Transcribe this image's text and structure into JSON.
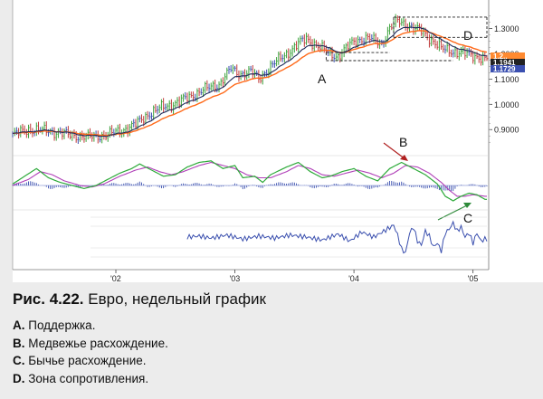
{
  "figure": {
    "number_label": "Рис. 4.22.",
    "caption": "Евро, недельный график"
  },
  "legend_items": [
    {
      "key": "A.",
      "text": "Поддержка."
    },
    {
      "key": "B.",
      "text": "Медвежье расхождение."
    },
    {
      "key": "C.",
      "text": "Бычье расхождение."
    },
    {
      "key": "D.",
      "text": "Зона сопротивления."
    }
  ],
  "colors": {
    "page_bg": "#ececec",
    "chart_bg": "#ffffff",
    "up_bar": "#3aa13a",
    "down_bar": "#c03a3a",
    "neutral_bar": "#3a4fae",
    "ema_fast": "#1f2a5a",
    "ema_slow": "#ff6a1a",
    "macd_line": "#2eaa3a",
    "signal_line": "#b040b8",
    "histogram": "#3a4fae",
    "index_line": "#3a4fae",
    "arrow_bearish": "#b02020",
    "arrow_bullish": "#2e8a3a",
    "price_tag_dark": "#222222",
    "price_tag_orange": "#ff8a30",
    "price_tag_blue": "#3a4fb0"
  },
  "chart_data": {
    "type": "line",
    "title": "Евро, недельный график",
    "x_ticks": [
      "'02",
      "'03",
      "'04",
      "'05"
    ],
    "y_ticks": [
      0.9,
      1.0,
      1.1,
      1.2,
      1.3
    ],
    "y_tick_labels": [
      "0.9000",
      "1.0000",
      "1.1000",
      "1.2000",
      "1.3000"
    ],
    "ylim": [
      0.84,
      1.37
    ],
    "price_tags": [
      "1.2..",
      "1.1941",
      "1.1729"
    ],
    "price_keypoints": [
      [
        0,
        0.88
      ],
      [
        8,
        0.9
      ],
      [
        18,
        0.895
      ],
      [
        28,
        0.88
      ],
      [
        38,
        0.87
      ],
      [
        48,
        0.88
      ],
      [
        56,
        0.9
      ],
      [
        62,
        0.92
      ],
      [
        68,
        0.96
      ],
      [
        76,
        0.99
      ],
      [
        84,
        1.01
      ],
      [
        94,
        1.05
      ],
      [
        104,
        1.08
      ],
      [
        110,
        1.14
      ],
      [
        114,
        1.12
      ],
      [
        120,
        1.13
      ],
      [
        124,
        1.1
      ],
      [
        130,
        1.15
      ],
      [
        138,
        1.2
      ],
      [
        144,
        1.24
      ],
      [
        148,
        1.26
      ],
      [
        150,
        1.25
      ],
      [
        156,
        1.22
      ],
      [
        160,
        1.2
      ],
      [
        164,
        1.19
      ],
      [
        168,
        1.22
      ],
      [
        172,
        1.25
      ],
      [
        176,
        1.26
      ],
      [
        180,
        1.26
      ],
      [
        186,
        1.24
      ],
      [
        190,
        1.3
      ],
      [
        194,
        1.33
      ],
      [
        198,
        1.32
      ],
      [
        202,
        1.3
      ],
      [
        206,
        1.29
      ],
      [
        212,
        1.25
      ],
      [
        216,
        1.22
      ],
      [
        222,
        1.21
      ],
      [
        228,
        1.2
      ],
      [
        234,
        1.19
      ],
      [
        238,
        1.18
      ]
    ],
    "macd_keypoints": [
      [
        0,
        0.05
      ],
      [
        6,
        0.3
      ],
      [
        12,
        0.55
      ],
      [
        18,
        0.25
      ],
      [
        24,
        0.1
      ],
      [
        30,
        0.0
      ],
      [
        36,
        -0.1
      ],
      [
        42,
        0.0
      ],
      [
        48,
        0.2
      ],
      [
        54,
        0.4
      ],
      [
        60,
        0.55
      ],
      [
        64,
        0.7
      ],
      [
        70,
        0.5
      ],
      [
        76,
        0.3
      ],
      [
        82,
        0.35
      ],
      [
        88,
        0.6
      ],
      [
        94,
        0.75
      ],
      [
        100,
        0.8
      ],
      [
        106,
        0.55
      ],
      [
        112,
        0.65
      ],
      [
        116,
        0.25
      ],
      [
        122,
        0.3
      ],
      [
        126,
        0.1
      ],
      [
        130,
        0.35
      ],
      [
        138,
        0.6
      ],
      [
        144,
        0.75
      ],
      [
        150,
        0.45
      ],
      [
        156,
        0.25
      ],
      [
        160,
        0.3
      ],
      [
        166,
        0.45
      ],
      [
        172,
        0.55
      ],
      [
        178,
        0.3
      ],
      [
        184,
        0.15
      ],
      [
        190,
        0.55
      ],
      [
        196,
        0.75
      ],
      [
        202,
        0.55
      ],
      [
        208,
        0.35
      ],
      [
        214,
        0.05
      ],
      [
        218,
        -0.35
      ],
      [
        222,
        -0.5
      ],
      [
        226,
        -0.35
      ],
      [
        230,
        -0.25
      ],
      [
        234,
        -0.3
      ],
      [
        238,
        -0.45
      ]
    ],
    "signal_keypoints": [
      [
        0,
        0.0
      ],
      [
        8,
        0.2
      ],
      [
        14,
        0.45
      ],
      [
        20,
        0.35
      ],
      [
        26,
        0.15
      ],
      [
        34,
        0.0
      ],
      [
        40,
        -0.05
      ],
      [
        46,
        0.05
      ],
      [
        54,
        0.3
      ],
      [
        62,
        0.5
      ],
      [
        68,
        0.6
      ],
      [
        74,
        0.45
      ],
      [
        80,
        0.35
      ],
      [
        86,
        0.45
      ],
      [
        94,
        0.65
      ],
      [
        100,
        0.75
      ],
      [
        106,
        0.65
      ],
      [
        112,
        0.55
      ],
      [
        118,
        0.35
      ],
      [
        124,
        0.25
      ],
      [
        130,
        0.25
      ],
      [
        138,
        0.45
      ],
      [
        144,
        0.65
      ],
      [
        150,
        0.55
      ],
      [
        156,
        0.35
      ],
      [
        162,
        0.3
      ],
      [
        168,
        0.4
      ],
      [
        174,
        0.5
      ],
      [
        180,
        0.4
      ],
      [
        186,
        0.25
      ],
      [
        192,
        0.4
      ],
      [
        198,
        0.65
      ],
      [
        204,
        0.6
      ],
      [
        210,
        0.4
      ],
      [
        216,
        0.1
      ],
      [
        220,
        -0.15
      ],
      [
        224,
        -0.35
      ],
      [
        228,
        -0.35
      ],
      [
        232,
        -0.3
      ],
      [
        238,
        -0.35
      ]
    ],
    "index_keypoints": [
      [
        88,
        0.0
      ],
      [
        94,
        0.05
      ],
      [
        100,
        -0.05
      ],
      [
        108,
        0.1
      ],
      [
        116,
        -0.1
      ],
      [
        124,
        0.05
      ],
      [
        132,
        -0.05
      ],
      [
        140,
        0.1
      ],
      [
        148,
        0.0
      ],
      [
        156,
        -0.15
      ],
      [
        164,
        0.15
      ],
      [
        170,
        -0.2
      ],
      [
        176,
        0.25
      ],
      [
        182,
        0.0
      ],
      [
        188,
        0.35
      ],
      [
        192,
        0.6
      ],
      [
        194,
        0.1
      ],
      [
        196,
        -0.6
      ],
      [
        198,
        -0.8
      ],
      [
        200,
        0.2
      ],
      [
        202,
        0.5
      ],
      [
        204,
        -0.2
      ],
      [
        206,
        -0.4
      ],
      [
        208,
        0.3
      ],
      [
        210,
        0.05
      ],
      [
        212,
        -0.5
      ],
      [
        214,
        -0.3
      ],
      [
        216,
        -0.7
      ],
      [
        218,
        0.2
      ],
      [
        220,
        0.4
      ],
      [
        222,
        0.7
      ],
      [
        224,
        0.3
      ],
      [
        226,
        0.5
      ],
      [
        228,
        0.0
      ],
      [
        230,
        0.2
      ],
      [
        232,
        -0.3
      ],
      [
        234,
        0.2
      ],
      [
        236,
        -0.2
      ],
      [
        238,
        -0.1
      ]
    ],
    "annotations": [
      {
        "id": "A",
        "label": "A",
        "kind": "support",
        "x_index": 164,
        "price": 1.185
      },
      {
        "id": "D",
        "label": "D",
        "kind": "resistance",
        "x_index": 198,
        "price": 1.315
      },
      {
        "id": "B",
        "label": "B",
        "kind": "bearish-divergence",
        "x_index": 200
      },
      {
        "id": "C",
        "label": "C",
        "kind": "bullish-divergence",
        "x_index": 224
      }
    ]
  }
}
